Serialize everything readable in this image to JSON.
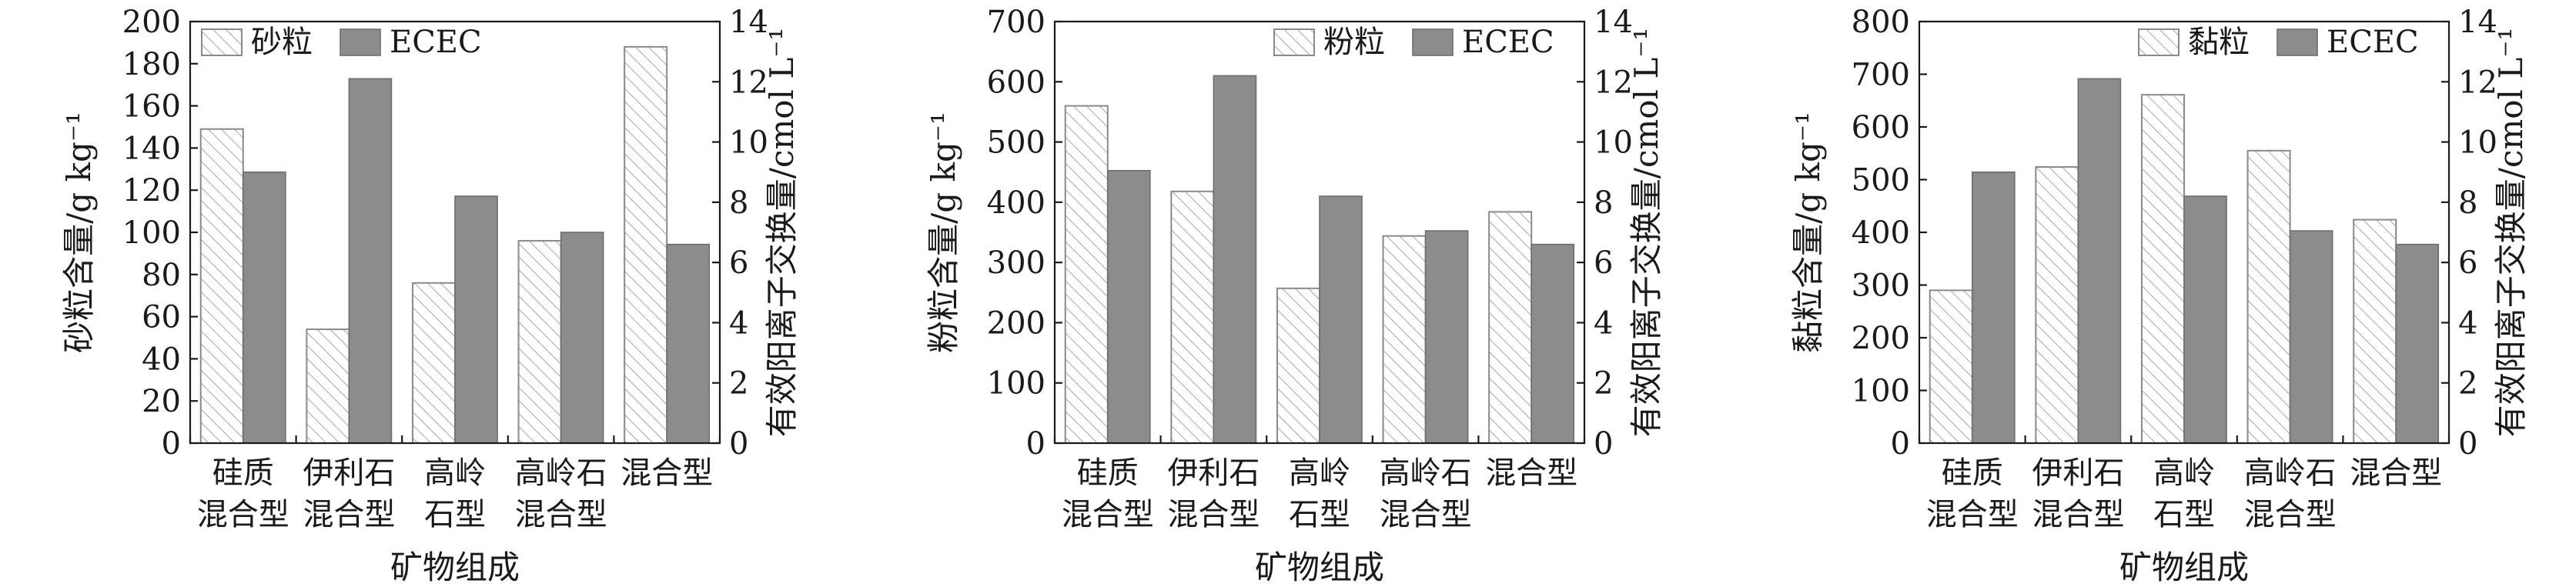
{
  "colors": {
    "hatch_stroke": "#9a9a9a",
    "solid_fill": "#8c8c8c",
    "axis": "#1a1a1a"
  },
  "chart_data": [
    {
      "type": "bar",
      "xlabel": "矿物组成",
      "ylabel": "砂粒含量/g kg⁻¹",
      "y2label": "有效阳离子交换量/cmol L⁻¹",
      "categories": [
        [
          "硅质",
          "混合型"
        ],
        [
          "伊利石",
          "混合型"
        ],
        [
          "高岭",
          "石型"
        ],
        [
          "高岭石",
          "混合型"
        ],
        [
          "混合型"
        ]
      ],
      "ylim": [
        0,
        200
      ],
      "yticks": [
        0,
        20,
        40,
        60,
        80,
        100,
        120,
        140,
        160,
        180,
        200
      ],
      "y2lim": [
        0,
        14
      ],
      "y2ticks": [
        0,
        2,
        4,
        6,
        8,
        10,
        12,
        14
      ],
      "legend_position": "top-left",
      "series": [
        {
          "name": "砂粒",
          "axis": "left",
          "style": "hatched",
          "values": [
            149,
            54,
            76,
            96,
            188
          ]
        },
        {
          "name": "ECEC",
          "axis": "right",
          "style": "solid",
          "values": [
            9.0,
            12.1,
            8.2,
            7.0,
            6.6
          ]
        }
      ]
    },
    {
      "type": "bar",
      "xlabel": "矿物组成",
      "ylabel": "粉粒含量/g kg⁻¹",
      "y2label": "有效阳离子交换量/cmol L⁻¹",
      "categories": [
        [
          "硅质",
          "混合型"
        ],
        [
          "伊利石",
          "混合型"
        ],
        [
          "高岭",
          "石型"
        ],
        [
          "高岭石",
          "混合型"
        ],
        [
          "混合型"
        ]
      ],
      "ylim": [
        0,
        700
      ],
      "yticks": [
        0,
        100,
        200,
        300,
        400,
        500,
        600,
        700
      ],
      "y2lim": [
        0,
        14
      ],
      "y2ticks": [
        0,
        2,
        4,
        6,
        8,
        10,
        12,
        14
      ],
      "legend_position": "top-right",
      "series": [
        {
          "name": "粉粒",
          "axis": "left",
          "style": "hatched",
          "values": [
            560,
            418,
            257,
            344,
            384
          ]
        },
        {
          "name": "ECEC",
          "axis": "right",
          "style": "solid",
          "values": [
            9.05,
            12.2,
            8.2,
            7.05,
            6.6
          ]
        }
      ]
    },
    {
      "type": "bar",
      "xlabel": "矿物组成",
      "ylabel": "黏粒含量/g kg⁻¹",
      "y2label": "有效阳离子交换量/cmol L⁻¹",
      "categories": [
        [
          "硅质",
          "混合型"
        ],
        [
          "伊利石",
          "混合型"
        ],
        [
          "高岭",
          "石型"
        ],
        [
          "高岭石",
          "混合型"
        ],
        [
          "混合型"
        ]
      ],
      "ylim": [
        0,
        800
      ],
      "yticks": [
        0,
        100,
        200,
        300,
        400,
        500,
        600,
        700,
        800
      ],
      "y2lim": [
        0,
        14
      ],
      "y2ticks": [
        0,
        2,
        4,
        6,
        8,
        10,
        12,
        14
      ],
      "legend_position": "top-right",
      "series": [
        {
          "name": "黏粒",
          "axis": "left",
          "style": "hatched",
          "values": [
            290,
            524,
            661,
            555,
            424
          ]
        },
        {
          "name": "ECEC",
          "axis": "right",
          "style": "solid",
          "values": [
            9.0,
            12.1,
            8.2,
            7.05,
            6.6
          ]
        }
      ]
    }
  ]
}
